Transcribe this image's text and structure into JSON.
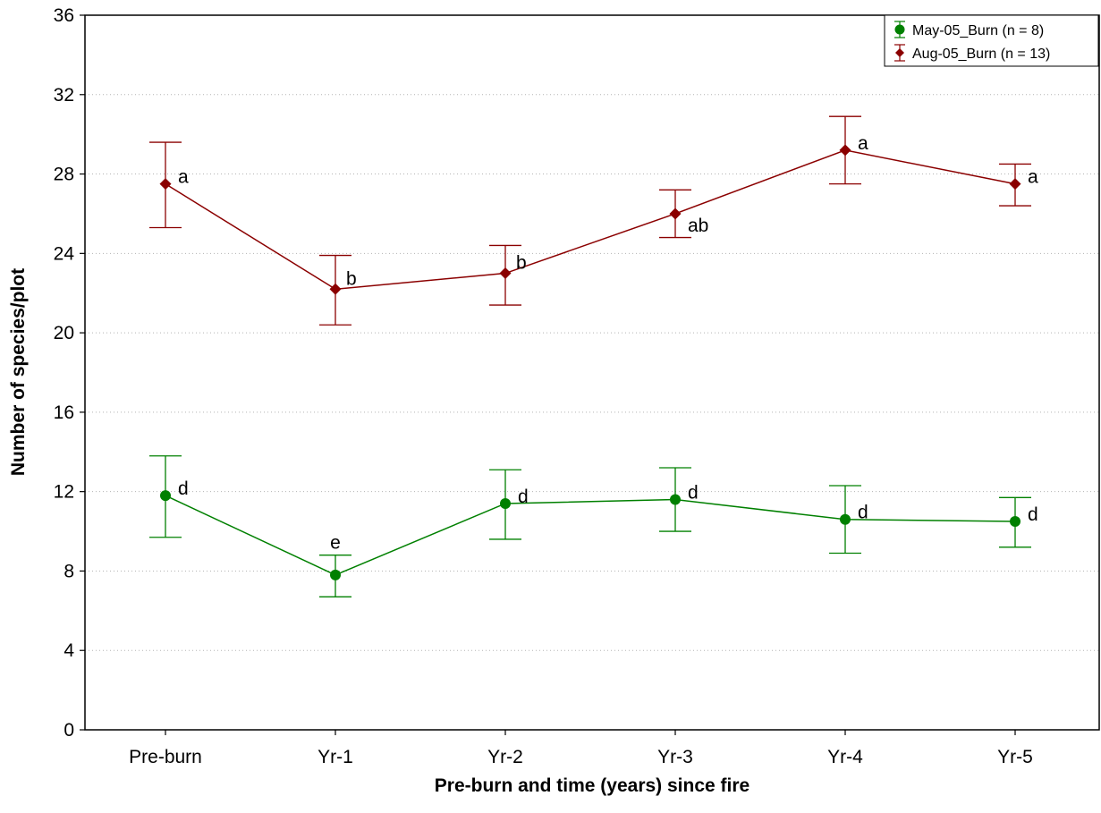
{
  "chart_data": {
    "type": "line",
    "title": "",
    "xlabel": "Pre-burn and time (years) since fire",
    "ylabel": "Number of species/plot",
    "categories": [
      "Pre-burn",
      "Yr-1",
      "Yr-2",
      "Yr-3",
      "Yr-4",
      "Yr-5"
    ],
    "ylim": [
      0,
      36
    ],
    "yticks": [
      "0",
      "4",
      "8",
      "12",
      "16",
      "20",
      "24",
      "28",
      "32",
      "36"
    ],
    "grid": "horizontal dotted",
    "legend_position": "top-right",
    "series": [
      {
        "name": "May-05_Burn (n = 8)",
        "color": "#008000",
        "marker": "circle",
        "values": [
          11.8,
          7.8,
          11.4,
          11.6,
          10.6,
          10.5
        ],
        "err_low": [
          9.7,
          6.7,
          9.6,
          10.0,
          8.9,
          9.2
        ],
        "err_high": [
          13.8,
          8.8,
          13.1,
          13.2,
          12.3,
          11.7
        ],
        "labels": [
          "d",
          "e",
          "d",
          "d",
          "d",
          "d"
        ]
      },
      {
        "name": "Aug-05_Burn (n = 13)",
        "color": "#8b0000",
        "marker": "diamond",
        "values": [
          27.5,
          22.2,
          23.0,
          26.0,
          29.2,
          27.5
        ],
        "err_low": [
          25.3,
          20.4,
          21.4,
          24.8,
          27.5,
          26.4
        ],
        "err_high": [
          29.6,
          23.9,
          24.4,
          27.2,
          30.9,
          28.5
        ],
        "labels": [
          "a",
          "b",
          "b",
          "ab",
          "a",
          "a"
        ]
      }
    ]
  }
}
